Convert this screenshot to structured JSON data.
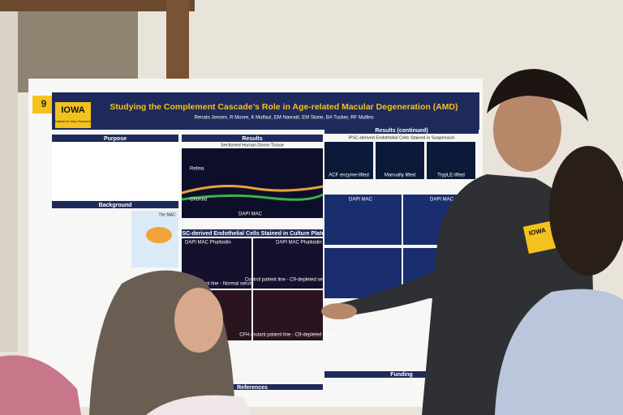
{
  "poster": {
    "number": "9",
    "logo": "IOWA",
    "logo_subtitle": "Institute for Vision Research",
    "title": "Studying the Complement Cascade’s Role in Age-related Macular Degeneration (AMD)",
    "authors": "Renato Jensen, R Moore, K Mulfaul, EM Navratil, EM Stone, BA Tucker, RF Mullins",
    "sections": {
      "purpose": "Purpose",
      "background": "Background",
      "results": "Results",
      "results_continued": "Results (continued)",
      "funding": "Funding",
      "references": "References"
    },
    "panels": {
      "tissue": "Sectioned Human Donor Tissue",
      "suspension": "iPSC-derived Endothelial Cells Stained in Suspension",
      "plates": "iPSC-derived Endothelial Cells Stained in Culture Plates",
      "mac": "The MAC"
    },
    "labels": {
      "retina": "Retina",
      "choroid": "Choroid",
      "dapi_mac": "DAPI MAC",
      "acf": "ACF enzyme-lifted",
      "manual": "Manually lifted",
      "tryple": "TrypLE-lifted",
      "phalloidin": "DAPI MAC Phalloidin",
      "control_normal": "Control patient line - Normal serum",
      "control_c9": "Control patient line - C9-depleted serum",
      "cfh_c9": "CFH mutant patient line - C9-depleted serum"
    }
  },
  "badge": {
    "logo": "IOWA"
  }
}
